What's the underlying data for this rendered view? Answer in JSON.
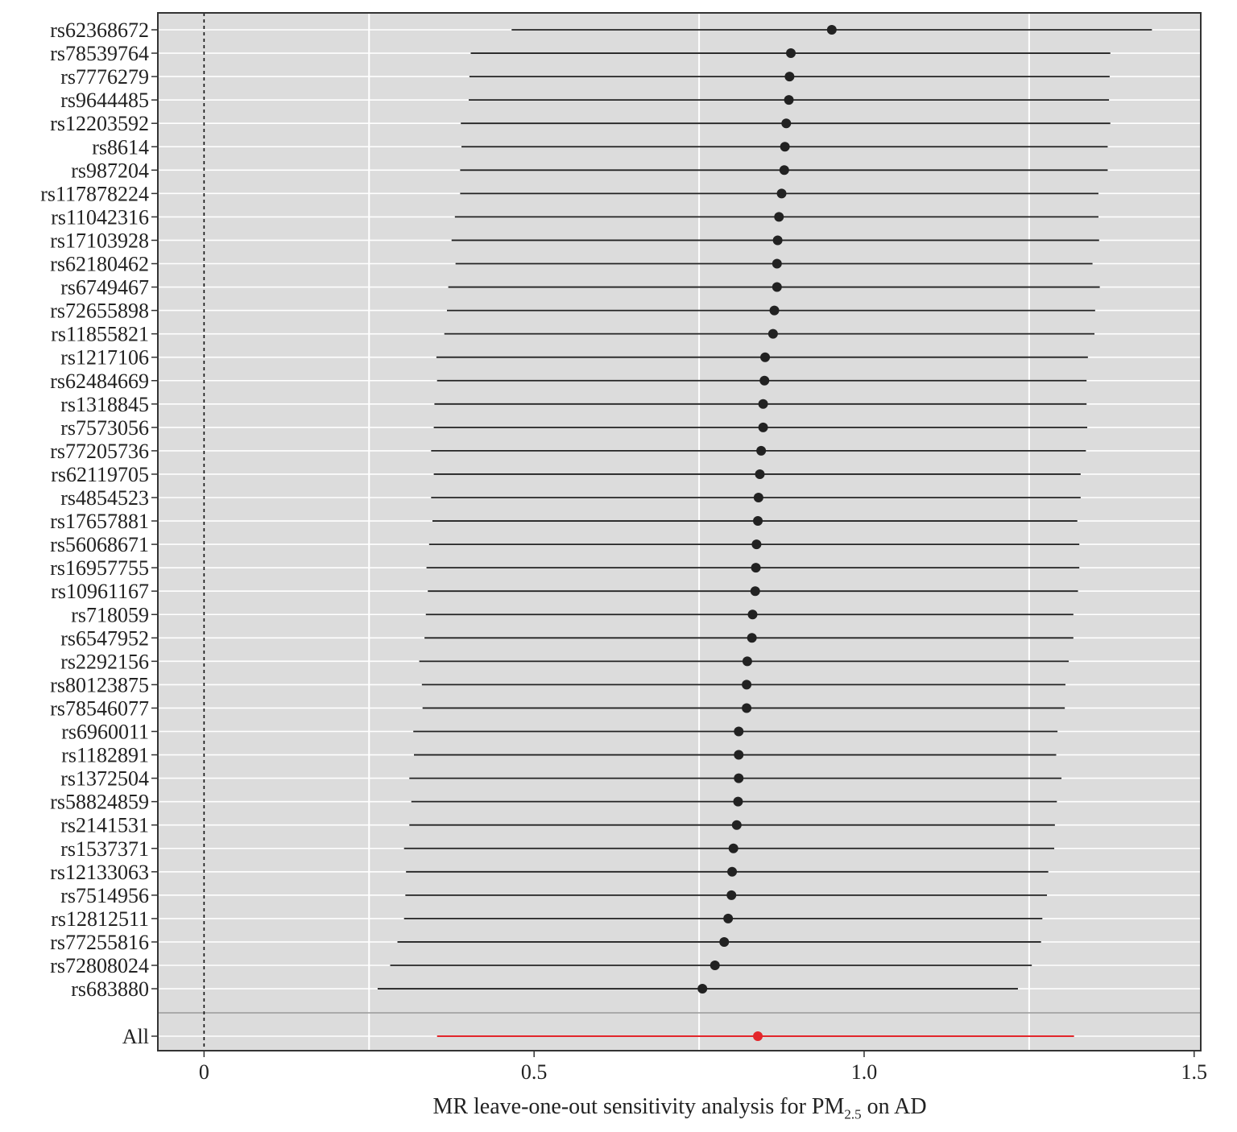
{
  "chart_data": {
    "type": "scatter",
    "xlabel": {
      "prefix": "MR leave-one-out sensitivity analysis for PM",
      "subscript": "2.5",
      "suffix": " on AD"
    },
    "xlim": [
      -0.07,
      1.51
    ],
    "xticks": [
      0,
      0.5,
      1.0,
      1.5
    ],
    "xtick_labels": [
      "0",
      "0.5",
      "1.0",
      "1.5"
    ],
    "grid": true,
    "reference_line": 0,
    "colors": {
      "panel": "#dcdcdc",
      "point": "#222222",
      "summary": "#e3262b",
      "grid": "#ffffff",
      "separator": "#999999"
    },
    "series": [
      {
        "label": "rs62368672",
        "estimate": 0.951,
        "lower": 0.466,
        "upper": 1.436
      },
      {
        "label": "rs78539764",
        "estimate": 0.889,
        "lower": 0.404,
        "upper": 1.373
      },
      {
        "label": "rs7776279",
        "estimate": 0.887,
        "lower": 0.402,
        "upper": 1.372
      },
      {
        "label": "rs9644485",
        "estimate": 0.886,
        "lower": 0.401,
        "upper": 1.371
      },
      {
        "label": "rs12203592",
        "estimate": 0.882,
        "lower": 0.389,
        "upper": 1.373
      },
      {
        "label": "rs8614",
        "estimate": 0.88,
        "lower": 0.39,
        "upper": 1.369
      },
      {
        "label": "rs987204",
        "estimate": 0.879,
        "lower": 0.388,
        "upper": 1.369
      },
      {
        "label": "rs117878224",
        "estimate": 0.875,
        "lower": 0.388,
        "upper": 1.355
      },
      {
        "label": "rs11042316",
        "estimate": 0.871,
        "lower": 0.38,
        "upper": 1.355
      },
      {
        "label": "rs17103928",
        "estimate": 0.869,
        "lower": 0.375,
        "upper": 1.356
      },
      {
        "label": "rs62180462",
        "estimate": 0.868,
        "lower": 0.381,
        "upper": 1.346
      },
      {
        "label": "rs6749467",
        "estimate": 0.868,
        "lower": 0.37,
        "upper": 1.357
      },
      {
        "label": "rs72655898",
        "estimate": 0.864,
        "lower": 0.368,
        "upper": 1.35
      },
      {
        "label": "rs11855821",
        "estimate": 0.862,
        "lower": 0.364,
        "upper": 1.349
      },
      {
        "label": "rs1217106",
        "estimate": 0.85,
        "lower": 0.352,
        "upper": 1.339
      },
      {
        "label": "rs62484669",
        "estimate": 0.849,
        "lower": 0.353,
        "upper": 1.337
      },
      {
        "label": "rs1318845",
        "estimate": 0.847,
        "lower": 0.349,
        "upper": 1.337
      },
      {
        "label": "rs7573056",
        "estimate": 0.847,
        "lower": 0.348,
        "upper": 1.338
      },
      {
        "label": "rs77205736",
        "estimate": 0.844,
        "lower": 0.344,
        "upper": 1.336
      },
      {
        "label": "rs62119705",
        "estimate": 0.842,
        "lower": 0.348,
        "upper": 1.328
      },
      {
        "label": "rs4854523",
        "estimate": 0.84,
        "lower": 0.344,
        "upper": 1.328
      },
      {
        "label": "rs17657881",
        "estimate": 0.839,
        "lower": 0.346,
        "upper": 1.323
      },
      {
        "label": "rs56068671",
        "estimate": 0.837,
        "lower": 0.341,
        "upper": 1.326
      },
      {
        "label": "rs16957755",
        "estimate": 0.836,
        "lower": 0.337,
        "upper": 1.326
      },
      {
        "label": "rs10961167",
        "estimate": 0.835,
        "lower": 0.339,
        "upper": 1.324
      },
      {
        "label": "rs718059",
        "estimate": 0.831,
        "lower": 0.336,
        "upper": 1.317
      },
      {
        "label": "rs6547952",
        "estimate": 0.83,
        "lower": 0.334,
        "upper": 1.317
      },
      {
        "label": "rs2292156",
        "estimate": 0.823,
        "lower": 0.326,
        "upper": 1.31
      },
      {
        "label": "rs80123875",
        "estimate": 0.822,
        "lower": 0.33,
        "upper": 1.305
      },
      {
        "label": "rs78546077",
        "estimate": 0.822,
        "lower": 0.331,
        "upper": 1.304
      },
      {
        "label": "rs6960011",
        "estimate": 0.81,
        "lower": 0.317,
        "upper": 1.293
      },
      {
        "label": "rs1182891",
        "estimate": 0.81,
        "lower": 0.318,
        "upper": 1.291
      },
      {
        "label": "rs1372504",
        "estimate": 0.81,
        "lower": 0.311,
        "upper": 1.299
      },
      {
        "label": "rs58824859",
        "estimate": 0.809,
        "lower": 0.314,
        "upper": 1.292
      },
      {
        "label": "rs2141531",
        "estimate": 0.807,
        "lower": 0.311,
        "upper": 1.289
      },
      {
        "label": "rs1537371",
        "estimate": 0.802,
        "lower": 0.303,
        "upper": 1.288
      },
      {
        "label": "rs12133063",
        "estimate": 0.8,
        "lower": 0.306,
        "upper": 1.279
      },
      {
        "label": "rs7514956",
        "estimate": 0.799,
        "lower": 0.305,
        "upper": 1.277
      },
      {
        "label": "rs12812511",
        "estimate": 0.794,
        "lower": 0.303,
        "upper": 1.27
      },
      {
        "label": "rs77255816",
        "estimate": 0.788,
        "lower": 0.293,
        "upper": 1.268
      },
      {
        "label": "rs72808024",
        "estimate": 0.774,
        "lower": 0.282,
        "upper": 1.254
      },
      {
        "label": "rs683880",
        "estimate": 0.755,
        "lower": 0.263,
        "upper": 1.233
      }
    ],
    "summary": {
      "label": "All",
      "estimate": 0.839,
      "lower": 0.353,
      "upper": 1.318
    }
  }
}
